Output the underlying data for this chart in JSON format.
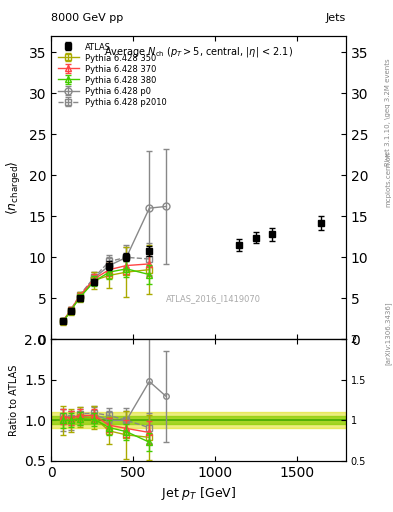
{
  "title_top": "8000 GeV pp",
  "title_right": "Jets",
  "plot_title": "Average N_{ch} (p_T>5, central, |\\eta| < 2.1)",
  "ylabel_main": "\\langle n_{charged} \\rangle",
  "ylabel_ratio": "Ratio to ATLAS",
  "xlabel": "Jet p_T [GeV]",
  "watermark": "ATLAS_2016_I1419070",
  "right_label": "Rivet 3.1.10, \\geq 3.2M events",
  "arxiv_label": "[arXiv:1306.3436]",
  "mcplots_label": "mcplots.cern.ch",
  "ylim_main": [
    0,
    37
  ],
  "ylim_ratio": [
    0.5,
    2.0
  ],
  "xlim": [
    0,
    1800
  ],
  "atlas_x": [
    75,
    120,
    175,
    265,
    355,
    460,
    600,
    1150,
    1250,
    1350,
    1650
  ],
  "atlas_y": [
    2.2,
    3.5,
    5.0,
    7.0,
    9.0,
    10.0,
    10.8,
    11.5,
    12.4,
    12.8,
    14.2
  ],
  "atlas_yerr": [
    0.2,
    0.3,
    0.3,
    0.4,
    0.5,
    0.5,
    0.6,
    0.7,
    0.7,
    0.8,
    0.9
  ],
  "atlas_color": "#000000",
  "atlas_marker": "s",
  "atlas_markersize": 7,
  "p350_x": [
    75,
    120,
    175,
    265,
    355,
    460,
    600
  ],
  "p350_y": [
    2.2,
    3.5,
    5.2,
    7.2,
    7.8,
    8.2,
    8.5
  ],
  "p350_yerr_lo": [
    0.4,
    0.5,
    0.6,
    1.0,
    1.5,
    3.0,
    3.0
  ],
  "p350_yerr_hi": [
    0.4,
    0.5,
    0.6,
    1.0,
    1.5,
    3.0,
    3.0
  ],
  "p350_color": "#aaaa00",
  "p350_marker": "s",
  "p350_linestyle": "-",
  "p370_x": [
    75,
    120,
    175,
    265,
    355,
    460,
    600
  ],
  "p370_y": [
    2.3,
    3.6,
    5.3,
    7.4,
    8.5,
    9.0,
    9.2
  ],
  "p370_yerr": [
    0.2,
    0.3,
    0.4,
    0.6,
    0.8,
    1.0,
    1.5
  ],
  "p370_color": "#ff4444",
  "p370_marker": "^",
  "p370_linestyle": "-",
  "p380_x": [
    75,
    120,
    175,
    265,
    355,
    460,
    600
  ],
  "p380_y": [
    2.2,
    3.5,
    5.1,
    7.1,
    8.2,
    8.6,
    7.9
  ],
  "p380_yerr": [
    0.2,
    0.3,
    0.4,
    0.6,
    0.8,
    1.0,
    1.2
  ],
  "p380_color": "#44cc00",
  "p380_marker": "^",
  "p380_linestyle": "-",
  "p0_x": [
    75,
    120,
    175,
    265,
    355,
    460,
    600,
    700
  ],
  "p0_y": [
    2.2,
    3.5,
    5.2,
    7.5,
    9.0,
    10.0,
    16.0,
    16.2
  ],
  "p0_yerr_lo": [
    0.3,
    0.4,
    0.5,
    0.7,
    1.0,
    1.5,
    7.0,
    7.0
  ],
  "p0_yerr_hi": [
    0.3,
    0.4,
    0.5,
    0.7,
    1.0,
    1.5,
    7.0,
    7.0
  ],
  "p0_color": "#888888",
  "p0_marker": "o",
  "p0_linestyle": "-",
  "p2010_x": [
    75,
    120,
    175,
    265,
    355,
    460,
    600
  ],
  "p2010_y": [
    2.3,
    3.6,
    5.4,
    7.6,
    9.5,
    10.0,
    9.8
  ],
  "p2010_yerr": [
    0.2,
    0.3,
    0.4,
    0.6,
    0.8,
    1.2,
    2.0
  ],
  "p2010_color": "#888888",
  "p2010_marker": "s",
  "p2010_linestyle": "--",
  "ratio_atlas_band_color": "#dddd00",
  "ratio_atlas_band2_color": "#aaee00",
  "ratio_p350_x": [
    75,
    120,
    175,
    265,
    355,
    460,
    600
  ],
  "ratio_p350_y": [
    1.0,
    1.0,
    1.04,
    1.03,
    0.87,
    0.82,
    0.79
  ],
  "ratio_p370_x": [
    75,
    120,
    175,
    265,
    355,
    460,
    600
  ],
  "ratio_p370_y": [
    1.05,
    1.03,
    1.06,
    1.06,
    0.94,
    0.9,
    0.85
  ],
  "ratio_p380_x": [
    75,
    120,
    175,
    265,
    355,
    460,
    600
  ],
  "ratio_p380_y": [
    1.0,
    1.0,
    1.02,
    1.01,
    0.91,
    0.86,
    0.73
  ],
  "ratio_p0_x": [
    75,
    120,
    175,
    265,
    355,
    460,
    600,
    700
  ],
  "ratio_p0_y": [
    1.0,
    1.0,
    1.04,
    1.07,
    1.0,
    1.0,
    1.48,
    1.3
  ],
  "ratio_p2010_x": [
    75,
    120,
    175,
    265,
    355,
    460,
    600
  ],
  "ratio_p2010_y": [
    1.05,
    1.03,
    1.08,
    1.09,
    1.06,
    1.0,
    0.91
  ]
}
